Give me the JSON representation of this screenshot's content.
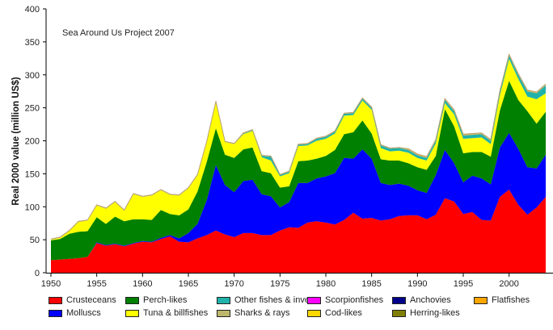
{
  "chart_data": {
    "type": "area",
    "stacked": true,
    "title": "",
    "annotation": "Sea Around Us Project 2007",
    "xlabel": "",
    "ylabel": "Real 2000 value (million US$)",
    "xlim": [
      1950,
      2004
    ],
    "ylim": [
      0,
      400
    ],
    "x_ticks": [
      "1950",
      "1955",
      "1960",
      "1965",
      "1970",
      "1975",
      "1980",
      "1985",
      "1990",
      "1995",
      "2000"
    ],
    "y_ticks": [
      "0",
      "50",
      "100",
      "150",
      "200",
      "250",
      "300",
      "350",
      "400"
    ],
    "grid": false,
    "legend_position": "bottom",
    "x": [
      1950,
      1951,
      1952,
      1953,
      1954,
      1955,
      1956,
      1957,
      1958,
      1959,
      1960,
      1961,
      1962,
      1963,
      1964,
      1965,
      1966,
      1967,
      1968,
      1969,
      1970,
      1971,
      1972,
      1973,
      1974,
      1975,
      1976,
      1977,
      1978,
      1979,
      1980,
      1981,
      1982,
      1983,
      1984,
      1985,
      1986,
      1987,
      1988,
      1989,
      1990,
      1991,
      1992,
      1993,
      1994,
      1995,
      1996,
      1997,
      1998,
      1999,
      2000,
      2001,
      2002,
      2003,
      2004
    ],
    "series": [
      {
        "name": "Crusteceans",
        "color": "#ff0000",
        "values": [
          19,
          20,
          21,
          22,
          24,
          45,
          41,
          43,
          40,
          44,
          47,
          46,
          51,
          55,
          47,
          46,
          52,
          57,
          64,
          58,
          54,
          60,
          60,
          57,
          57,
          64,
          69,
          68,
          76,
          78,
          76,
          73,
          80,
          91,
          82,
          83,
          79,
          81,
          86,
          87,
          87,
          81,
          88,
          113,
          108,
          89,
          92,
          80,
          79,
          115,
          126,
          103,
          88,
          99,
          115
        ]
      },
      {
        "name": "Molluscs",
        "color": "#0000ff",
        "values": [
          0,
          0,
          0,
          0,
          0,
          1,
          1,
          1,
          1,
          1,
          1,
          1,
          2,
          2,
          5,
          14,
          22,
          53,
          99,
          75,
          68,
          79,
          81,
          62,
          59,
          35,
          38,
          68,
          60,
          65,
          70,
          78,
          94,
          82,
          105,
          90,
          57,
          52,
          49,
          45,
          38,
          40,
          60,
          73,
          58,
          48,
          55,
          63,
          55,
          75,
          86,
          85,
          72,
          59,
          64
        ]
      },
      {
        "name": "Perch-likes",
        "color": "#008000",
        "values": [
          30,
          31,
          38,
          40,
          39,
          38,
          32,
          41,
          37,
          36,
          33,
          33,
          42,
          32,
          35,
          36,
          49,
          58,
          56,
          46,
          52,
          48,
          49,
          35,
          35,
          30,
          24,
          33,
          34,
          30,
          31,
          35,
          36,
          40,
          44,
          38,
          36,
          37,
          35,
          34,
          35,
          35,
          29,
          62,
          56,
          44,
          36,
          40,
          42,
          56,
          79,
          74,
          85,
          68,
          65
        ]
      },
      {
        "name": "Tuna & billfishes",
        "color": "#ffff00",
        "values": [
          1,
          2,
          4,
          15,
          16,
          18,
          23,
          22,
          16,
          38,
          34,
          37,
          30,
          29,
          30,
          32,
          25,
          30,
          40,
          19,
          21,
          23,
          25,
          21,
          19,
          17,
          20,
          23,
          23,
          27,
          26,
          25,
          28,
          26,
          30,
          36,
          17,
          14,
          15,
          16,
          14,
          14,
          19,
          9,
          18,
          22,
          21,
          22,
          19,
          23,
          33,
          32,
          22,
          37,
          28
        ]
      },
      {
        "name": "Other fishes & inverts",
        "color": "#20b2aa",
        "values": [
          0,
          0,
          0,
          0,
          0,
          0,
          0,
          0,
          0,
          0,
          0,
          0,
          0,
          0,
          0,
          0,
          0,
          0,
          0,
          0,
          0,
          1,
          1,
          2,
          6,
          2,
          2,
          2,
          2,
          3,
          3,
          3,
          3,
          3,
          3,
          3,
          4,
          4,
          4,
          4,
          4,
          4,
          4,
          5,
          5,
          5,
          5,
          5,
          5,
          5,
          5,
          6,
          8,
          9,
          12
        ]
      },
      {
        "name": "Sharks & rays",
        "color": "#bdb76b",
        "values": [
          1,
          1,
          1,
          1,
          1,
          1,
          1,
          1,
          1,
          1,
          1,
          1,
          1,
          1,
          1,
          1,
          1,
          1,
          1,
          1,
          1,
          1,
          1,
          1,
          1,
          1,
          1,
          1,
          1,
          1,
          1,
          1,
          1,
          1,
          1,
          1,
          1,
          1,
          1,
          1,
          1,
          1,
          1,
          1,
          1,
          1,
          1,
          1,
          1,
          1,
          1,
          1,
          1,
          1,
          1
        ]
      },
      {
        "name": "Scorpionfishes",
        "color": "#ff00ff",
        "values": [
          0,
          0,
          0,
          0,
          0,
          0,
          0,
          0,
          0,
          0,
          0,
          0,
          0,
          0,
          0,
          0,
          0,
          0,
          0,
          0,
          0,
          0,
          0,
          0,
          0,
          0,
          0,
          0,
          0,
          0,
          0,
          0,
          0,
          0,
          0,
          0,
          0,
          0,
          0,
          0,
          0,
          0,
          0,
          0,
          0,
          0,
          0,
          0,
          0,
          0,
          0,
          0,
          0,
          0,
          0
        ]
      },
      {
        "name": "Cod-likes",
        "color": "#ffd700",
        "values": [
          0,
          0,
          0,
          0,
          0,
          0,
          0,
          0,
          0,
          0,
          0,
          0,
          0,
          0,
          0,
          0,
          0,
          0,
          0,
          0,
          0,
          0,
          0,
          0,
          0,
          0,
          0,
          0,
          0,
          0,
          0,
          0,
          0,
          0,
          0,
          0,
          0,
          0,
          0,
          0,
          0,
          0,
          0,
          0,
          0,
          0,
          0,
          0,
          0,
          0,
          0,
          0,
          0,
          0,
          0
        ]
      },
      {
        "name": "Anchovies",
        "color": "#00008b",
        "values": [
          0,
          0,
          0,
          0,
          0,
          0,
          0,
          0,
          0,
          0,
          0,
          0,
          0,
          0,
          0,
          0,
          0,
          0,
          0,
          0,
          0,
          0,
          0,
          0,
          0,
          0,
          0,
          0,
          0,
          0,
          0,
          0,
          0,
          0,
          0,
          0,
          0,
          0,
          0,
          0,
          0,
          0,
          0,
          0,
          0,
          0,
          0,
          0,
          0,
          0,
          0,
          0,
          0,
          0,
          0
        ]
      },
      {
        "name": "Herring-likes",
        "color": "#808000",
        "values": [
          0,
          0,
          0,
          0,
          0,
          0,
          0,
          0,
          0,
          0,
          0,
          0,
          0,
          0,
          0,
          0,
          0,
          0,
          0,
          0,
          0,
          0,
          0,
          0,
          0,
          0,
          0,
          0,
          0,
          0,
          0,
          0,
          0,
          0,
          0,
          0,
          0,
          0,
          0,
          0,
          0,
          0,
          0,
          0,
          0,
          0,
          0,
          0,
          0,
          0,
          0,
          0,
          0,
          0,
          0
        ]
      },
      {
        "name": "Flatfishes",
        "color": "#ffa500",
        "values": [
          0,
          0,
          0,
          0,
          0,
          0,
          0,
          0,
          0,
          0,
          0,
          0,
          0,
          0,
          0,
          0,
          0,
          0,
          0,
          0,
          0,
          0,
          0,
          0,
          0,
          0,
          0,
          0,
          0,
          0,
          0,
          0,
          0,
          0,
          0,
          0,
          0,
          0,
          0,
          1,
          1,
          1,
          1,
          1,
          1,
          1,
          1,
          1,
          1,
          1,
          1,
          1,
          1,
          1,
          1
        ]
      }
    ],
    "legend": [
      {
        "name": "Crusteceans",
        "color": "#ff0000"
      },
      {
        "name": "Perch-likes",
        "color": "#008000"
      },
      {
        "name": "Other fishes & inverts",
        "color": "#20b2aa"
      },
      {
        "name": "Scorpionfishes",
        "color": "#ff00ff"
      },
      {
        "name": "Anchovies",
        "color": "#00008b"
      },
      {
        "name": "Flatfishes",
        "color": "#ffa500"
      },
      {
        "name": "Molluscs",
        "color": "#0000ff"
      },
      {
        "name": "Tuna & billfishes",
        "color": "#ffff00"
      },
      {
        "name": "Sharks & rays",
        "color": "#bdb76b"
      },
      {
        "name": "Cod-likes",
        "color": "#ffd700"
      },
      {
        "name": "Herring-likes",
        "color": "#808000"
      }
    ]
  }
}
